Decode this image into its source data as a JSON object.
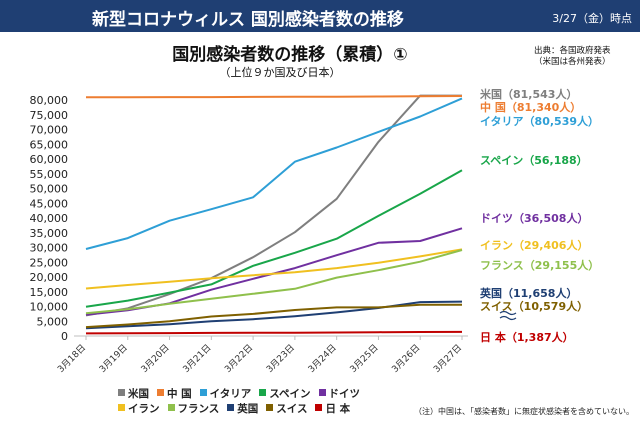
{
  "header": {
    "title": "新型コロナウィルス 国別感染者数の推移",
    "date": "3/27（金）時点"
  },
  "chart_title": "国別感染者数の推移（累積）①",
  "chart_subtitle": "（上位９か国及び日本）",
  "source": {
    "line1": "出典：各国政府発表",
    "line2": "（米国は各州発表）"
  },
  "footnote": "（注）中国は、「感染者数」に無症状感染者を含めていない。",
  "chart_data": {
    "type": "line",
    "title": "国別感染者数の推移（累積）①",
    "xlabel": "",
    "ylabel": "",
    "categories": [
      "3月18日",
      "3月19日",
      "3月20日",
      "3月21日",
      "3月22日",
      "3月23日",
      "3月24日",
      "3月25日",
      "3月26日",
      "3月27日"
    ],
    "ylim": [
      0,
      80000
    ],
    "yticks": [
      "0",
      "5,000",
      "10,000",
      "15,000",
      "20,000",
      "25,000",
      "30,000",
      "35,000",
      "40,000",
      "45,000",
      "50,000",
      "55,000",
      "60,000",
      "65,000",
      "70,000",
      "75,000",
      "80,000"
    ],
    "grid": false,
    "legend_position": "bottom",
    "series": [
      {
        "name": "米国",
        "color": "#7f7f7f",
        "values": [
          7000,
          9400,
          14200,
          19600,
          26700,
          35200,
          46500,
          65800,
          85300,
          81543
        ],
        "end_label": "米国（81,543人）"
      },
      {
        "name": "中 国",
        "color": "#ed7d31",
        "values": [
          80900,
          80950,
          80970,
          81000,
          81050,
          81090,
          81120,
          81180,
          81250,
          81340
        ],
        "end_label": "中 国（81,340人）"
      },
      {
        "name": "イタリア",
        "color": "#2e9fd6",
        "values": [
          29500,
          33200,
          39100,
          43000,
          47000,
          59100,
          63900,
          69200,
          74400,
          80539
        ],
        "end_label": "イタリア（80,539人）"
      },
      {
        "name": "スペイン",
        "color": "#19a64a",
        "values": [
          9900,
          12000,
          14700,
          17500,
          23800,
          28200,
          33000,
          40700,
          48200,
          56188
        ],
        "end_label": "スペイン（56,188）"
      },
      {
        "name": "ドイツ",
        "color": "#7030a0",
        "values": [
          7200,
          8700,
          11100,
          15700,
          19400,
          23000,
          27400,
          31600,
          32200,
          36508
        ],
        "end_label": "ドイツ（36,508人）"
      },
      {
        "name": "イラン",
        "color": "#f0c020",
        "values": [
          16100,
          17300,
          18400,
          19600,
          20600,
          21600,
          23000,
          24800,
          27000,
          29406
        ],
        "end_label": "イラン（29,406人）"
      },
      {
        "name": "フランス",
        "color": "#8fc04c",
        "values": [
          7700,
          9100,
          10900,
          12600,
          14300,
          16000,
          19800,
          22300,
          25200,
          29155
        ],
        "end_label": "フランス（29,155人）"
      },
      {
        "name": "英国",
        "color": "#1f3f73",
        "values": [
          2600,
          3300,
          4000,
          5000,
          5700,
          6700,
          8000,
          9500,
          11500,
          11658
        ],
        "end_label": "英国（11,658人）"
      },
      {
        "name": "スイス",
        "color": "#7f6000",
        "values": [
          3000,
          3900,
          5000,
          6600,
          7500,
          8800,
          9700,
          9700,
          10600,
          10579
        ],
        "end_label": "スイス（10,579人）"
      },
      {
        "name": "日 本",
        "color": "#c00000",
        "values": [
          870,
          950,
          1000,
          1050,
          1090,
          1130,
          1190,
          1290,
          1340,
          1387
        ],
        "end_label": "日 本（1,387人）"
      }
    ]
  }
}
